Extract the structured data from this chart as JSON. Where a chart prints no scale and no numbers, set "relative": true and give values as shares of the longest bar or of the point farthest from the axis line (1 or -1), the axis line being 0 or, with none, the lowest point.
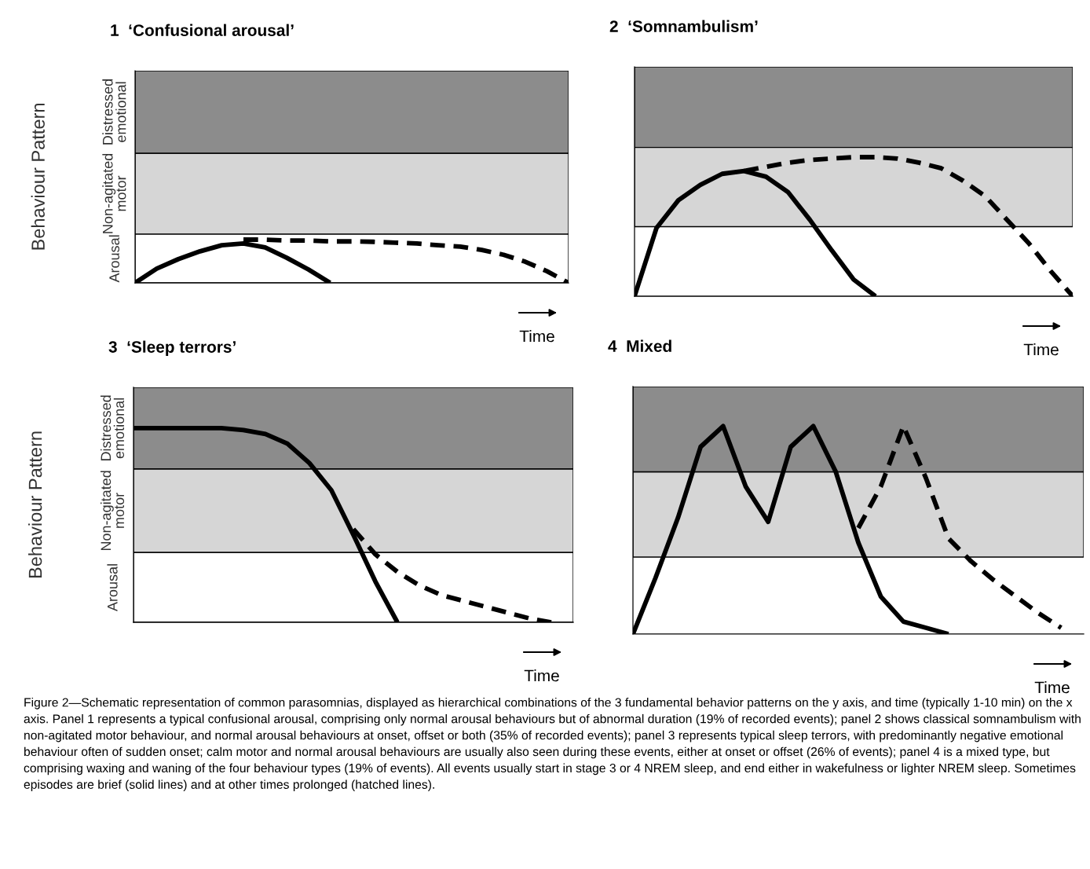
{
  "chart_data": [
    {
      "type": "line",
      "relative": true,
      "title": "1  ‘Confusional arousal’",
      "xlabel": "Time",
      "ylabel": "Behaviour Pattern",
      "legend": false,
      "categories": [
        null,
        null,
        null,
        null,
        null,
        null,
        null,
        null,
        null,
        null,
        null,
        null,
        null,
        null,
        null,
        null,
        null,
        null,
        null,
        null,
        null
      ],
      "series": [
        {
          "color": "#000000",
          "line_style": "solid",
          "values": [
            0,
            0.33,
            0.55,
            0.73,
            0.87,
            0.91,
            0.82,
            0.58,
            0.31,
            0,
            null,
            null,
            null,
            null,
            null,
            null,
            null,
            null,
            null,
            null,
            null
          ]
        },
        {
          "color": "#000000",
          "line_style": "dashed",
          "values": [
            null,
            null,
            null,
            null,
            null,
            1.0,
            1.0,
            0.98,
            0.98,
            0.96,
            0.96,
            0.95,
            0.93,
            0.91,
            0.87,
            0.84,
            0.76,
            0.65,
            0.49,
            0.27,
            0
          ]
        }
      ],
      "bands": [
        {
          "axis": "y",
          "from": 0,
          "to": 1.13,
          "label": "Arousal",
          "color": "#ffffff"
        },
        {
          "axis": "y",
          "from": 1.13,
          "to": 3.0,
          "label": "Non-agitated\nmotor",
          "color": "#d6d6d6"
        },
        {
          "axis": "y",
          "from": 3.0,
          "to": 4.91,
          "label": "Distressed\nemotional",
          "color": "#8c8c8c"
        }
      ],
      "annotations": [
        "Figure 2—Schematic representation of common parasomnias, displayed as hierarchical combinations of the 3 fundamental behavior patterns on the y axis, and time (typically 1-10 min) on the x axis. Panel 1 represents a typical confusional arousal, comprising only normal arousal behaviours but of abnormal duration (19% of recorded events); panel 2 shows classical somnambulism with non-agitated motor behaviour, and normal arousal behaviours at onset, offset or both (35% of recorded events); panel 3 represents typical sleep terrors, with predominantly negative emotional behaviour often of sudden onset; calm motor and normal arousal behaviours are usually also seen during these events, either at onset or offset (26% of events); panel 4 is a mixed type, but comprising waxing and waning of the four behaviour types (19% of events). All events usually start in stage 3 or 4 NREM sleep, and end either in wakefulness or lighter NREM sleep. Sometimes episodes are brief (solid lines) and at other times prolonged (hatched lines)."
      ]
    },
    {
      "type": "line",
      "relative": true,
      "title": "2  ‘Somnambulism’",
      "xlabel": "Time",
      "legend": false,
      "categories": [
        null,
        null,
        null,
        null,
        null,
        null,
        null,
        null,
        null,
        null,
        null,
        null,
        null,
        null,
        null,
        null,
        null,
        null,
        null,
        null,
        null
      ],
      "series": [
        {
          "color": "#000000",
          "line_style": "solid",
          "values": [
            0,
            0.49,
            0.69,
            0.8,
            0.88,
            0.9,
            0.86,
            0.75,
            0.55,
            0.33,
            0.12,
            0,
            null,
            null,
            null,
            null,
            null,
            null,
            null,
            null,
            null
          ]
        },
        {
          "color": "#000000",
          "line_style": "dashed",
          "values": [
            null,
            null,
            null,
            null,
            null,
            0.9,
            0.93,
            0.96,
            0.98,
            0.99,
            1.0,
            1.0,
            0.99,
            0.96,
            0.92,
            0.83,
            0.72,
            0.55,
            0.38,
            0.18,
            0
          ]
        }
      ],
      "bands": [
        {
          "axis": "y",
          "from": 1.07,
          "to": 1.65,
          "color": "#8c8c8c"
        },
        {
          "axis": "y",
          "from": 0.5,
          "to": 1.07,
          "color": "#d6d6d6"
        }
      ]
    },
    {
      "type": "line",
      "relative": true,
      "title": "3  ‘Sleep terrors’",
      "xlabel": "Time",
      "ylabel": "Behaviour Pattern",
      "legend": false,
      "categories": [
        null,
        null,
        null,
        null,
        null,
        null,
        null,
        null,
        null,
        null,
        null,
        null,
        null,
        null,
        null,
        null,
        null,
        null,
        null,
        null,
        null
      ],
      "series": [
        {
          "color": "#000000",
          "line_style": "solid",
          "values": [
            1.0,
            1.0,
            1.0,
            1.0,
            1.0,
            0.99,
            0.97,
            0.92,
            0.82,
            0.68,
            0.45,
            0.21,
            0,
            null,
            null,
            null,
            null,
            null,
            null,
            null,
            null
          ]
        },
        {
          "color": "#000000",
          "line_style": "dashed",
          "values": [
            null,
            null,
            null,
            null,
            null,
            null,
            null,
            null,
            null,
            null,
            0.48,
            0.35,
            0.26,
            0.19,
            0.14,
            0.11,
            0.08,
            0.05,
            0.02,
            0,
            null
          ]
        }
      ],
      "bands": [
        {
          "axis": "y",
          "from": 0,
          "to": 0.36,
          "label": "Arousal",
          "color": "#ffffff"
        },
        {
          "axis": "y",
          "from": 0.36,
          "to": 0.79,
          "label": "Non-agitated\nmotor",
          "color": "#d6d6d6"
        },
        {
          "axis": "y",
          "from": 0.79,
          "to": 1.21,
          "label": "Distressed\nemotional",
          "color": "#8c8c8c"
        }
      ]
    },
    {
      "type": "line",
      "relative": true,
      "title": "4  Mixed",
      "xlabel": "Time",
      "legend": false,
      "categories": [
        null,
        null,
        null,
        null,
        null,
        null,
        null,
        null,
        null,
        null,
        null,
        null,
        null,
        null,
        null,
        null,
        null,
        null,
        null,
        null,
        null
      ],
      "series": [
        {
          "color": "#000000",
          "line_style": "solid",
          "values": [
            0,
            0.27,
            0.56,
            0.9,
            1.0,
            0.71,
            0.54,
            0.9,
            1.0,
            0.78,
            0.44,
            0.18,
            0.06,
            0.03,
            0,
            null,
            null,
            null,
            null,
            null,
            null
          ]
        },
        {
          "color": "#000000",
          "line_style": "dashed",
          "values": [
            null,
            null,
            null,
            null,
            null,
            null,
            null,
            null,
            null,
            null,
            0.51,
            0.71,
            1.0,
            0.75,
            0.46,
            0.35,
            0.26,
            0.18,
            0.1,
            0.03,
            null
          ]
        }
      ],
      "bands": [
        {
          "axis": "y",
          "from": 0.37,
          "to": 0.78,
          "color": "#d6d6d6"
        },
        {
          "axis": "y",
          "from": 0.78,
          "to": 1.19,
          "color": "#8c8c8c"
        }
      ]
    }
  ]
}
